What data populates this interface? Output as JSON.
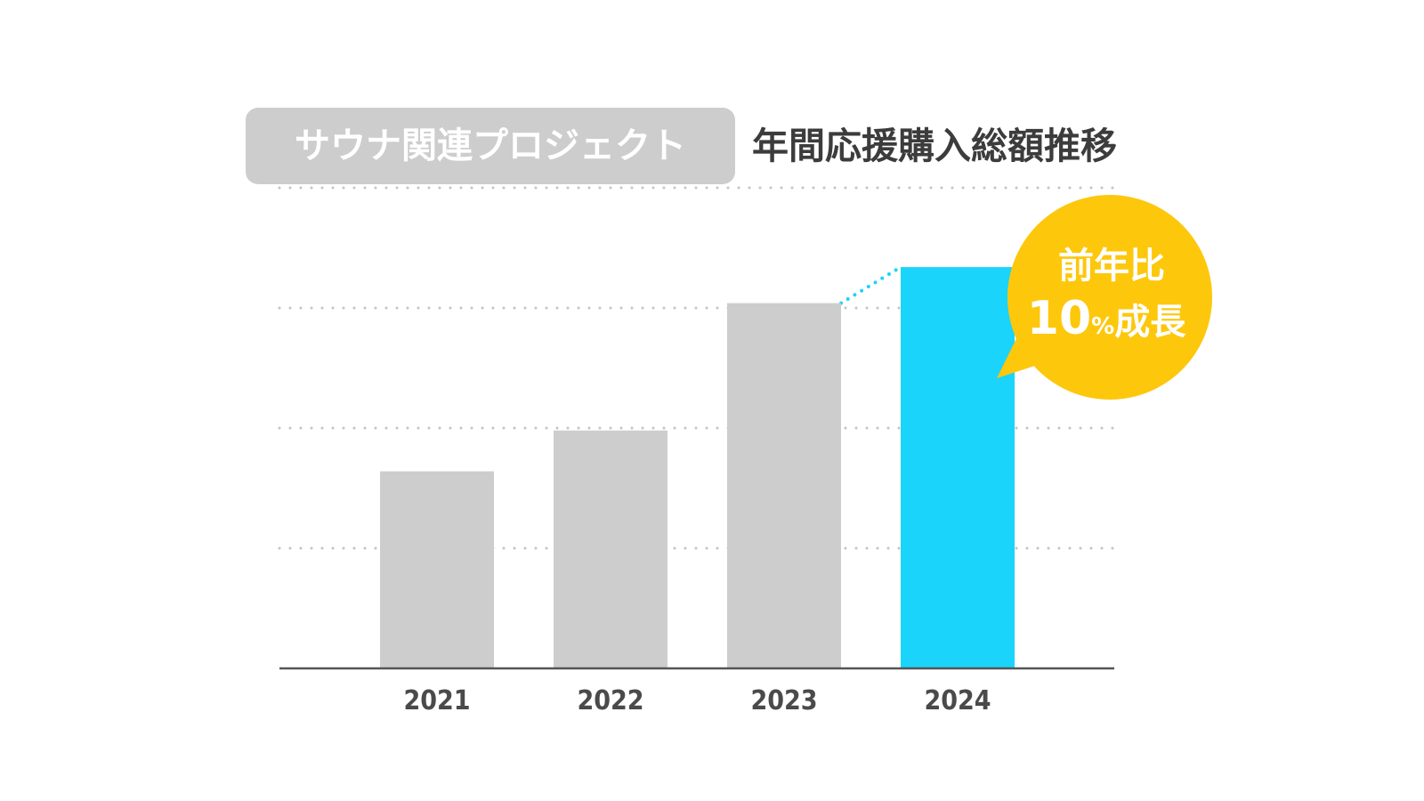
{
  "chart_data": {
    "type": "bar",
    "title_tag": "サウナ関連プロジェクト",
    "title": "年間応援購入総額推移",
    "categories": [
      "2021",
      "2022",
      "2023",
      "2024"
    ],
    "values": [
      41,
      49.5,
      76,
      83.5
    ],
    "ylim": [
      0,
      100
    ],
    "grid": true,
    "xlabel": "",
    "ylabel": "",
    "highlight_category": "2024",
    "callout": {
      "line1": "前年比",
      "line2_number": "10",
      "line2_percent": "%",
      "line2_text": "成長"
    }
  },
  "colors": {
    "bar_default": "#cdcdcd",
    "bar_highlight": "#1ad4fb",
    "callout_bg": "#fdc70c",
    "tag_bg": "#cdcdcd",
    "axis": "#555555",
    "grid_dots": "#c4c4c4",
    "connector": "#1ad4fb"
  }
}
